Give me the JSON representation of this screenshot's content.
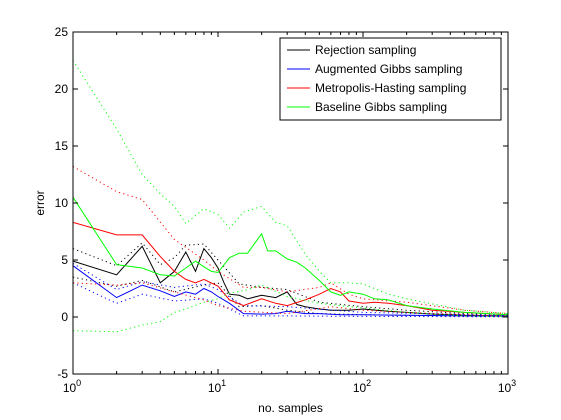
{
  "chart_data": {
    "type": "line",
    "title": "",
    "xlabel": "no. samples",
    "ylabel": "error",
    "xscale": "log",
    "xlim": [
      1,
      1000
    ],
    "ylim": [
      -5,
      25
    ],
    "grid": false,
    "legend_position": "top-right",
    "x_ticks": [
      {
        "value": 1,
        "base": "10",
        "exp": "0"
      },
      {
        "value": 10,
        "base": "10",
        "exp": "1"
      },
      {
        "value": 100,
        "base": "10",
        "exp": "2"
      },
      {
        "value": 1000,
        "base": "10",
        "exp": "3"
      }
    ],
    "y_ticks": [
      "-5",
      "0",
      "5",
      "10",
      "15",
      "20",
      "25"
    ],
    "series": [
      {
        "name": "Rejection sampling",
        "color": "#000000",
        "mean": [
          [
            1,
            4.9
          ],
          [
            2,
            3.7
          ],
          [
            3,
            6.2
          ],
          [
            4,
            3.0
          ],
          [
            5,
            4.0
          ],
          [
            6,
            5.7
          ],
          [
            7,
            4.0
          ],
          [
            8,
            6.0
          ],
          [
            9,
            5.2
          ],
          [
            10,
            4.3
          ],
          [
            11,
            3.0
          ],
          [
            12,
            2.0
          ],
          [
            14,
            1.9
          ],
          [
            16,
            1.6
          ],
          [
            20,
            1.9
          ],
          [
            25,
            1.7
          ],
          [
            30,
            2.2
          ],
          [
            35,
            1.1
          ],
          [
            40,
            0.9
          ],
          [
            50,
            0.7
          ],
          [
            60,
            0.6
          ],
          [
            80,
            0.6
          ],
          [
            100,
            0.7
          ],
          [
            150,
            0.5
          ],
          [
            200,
            0.4
          ],
          [
            300,
            0.25
          ],
          [
            500,
            0.15
          ],
          [
            1000,
            0.1
          ]
        ],
        "upper": [
          [
            1,
            6.0
          ],
          [
            2,
            4.5
          ],
          [
            3,
            6.5
          ],
          [
            4,
            4.6
          ],
          [
            5,
            5.2
          ],
          [
            6,
            6.3
          ],
          [
            8,
            6.4
          ],
          [
            10,
            5.0
          ],
          [
            14,
            2.9
          ],
          [
            20,
            2.6
          ],
          [
            30,
            2.4
          ],
          [
            50,
            1.3
          ],
          [
            100,
            0.9
          ],
          [
            200,
            0.6
          ],
          [
            500,
            0.3
          ],
          [
            1000,
            0.2
          ]
        ],
        "lower": [
          [
            1,
            3.5
          ],
          [
            2,
            2.7
          ],
          [
            3,
            3.2
          ],
          [
            5,
            2.2
          ],
          [
            8,
            2.8
          ],
          [
            10,
            3.0
          ],
          [
            14,
            0.9
          ],
          [
            20,
            1.0
          ],
          [
            30,
            0.6
          ],
          [
            50,
            0.3
          ],
          [
            100,
            0.2
          ],
          [
            1000,
            0.02
          ]
        ]
      },
      {
        "name": "Augmented Gibbs sampling",
        "color": "#0000ff",
        "mean": [
          [
            1,
            4.5
          ],
          [
            2,
            1.7
          ],
          [
            3,
            2.8
          ],
          [
            4,
            2.3
          ],
          [
            5,
            1.8
          ],
          [
            6,
            2.2
          ],
          [
            7,
            2.0
          ],
          [
            8,
            2.5
          ],
          [
            9,
            2.2
          ],
          [
            10,
            1.8
          ],
          [
            12,
            1.2
          ],
          [
            15,
            0.3
          ],
          [
            20,
            0.25
          ],
          [
            25,
            0.3
          ],
          [
            30,
            0.5
          ],
          [
            40,
            0.3
          ],
          [
            50,
            0.3
          ],
          [
            70,
            0.2
          ],
          [
            100,
            0.2
          ],
          [
            200,
            0.15
          ],
          [
            500,
            0.1
          ],
          [
            1000,
            0.08
          ]
        ],
        "upper": [
          [
            1,
            4.7
          ],
          [
            2,
            2.4
          ],
          [
            3,
            3.1
          ],
          [
            5,
            2.6
          ],
          [
            8,
            2.9
          ],
          [
            10,
            2.4
          ],
          [
            15,
            1.0
          ],
          [
            30,
            0.9
          ],
          [
            100,
            0.4
          ],
          [
            1000,
            0.15
          ]
        ],
        "lower": [
          [
            1,
            3.0
          ],
          [
            2,
            1.2
          ],
          [
            3,
            2.0
          ],
          [
            5,
            1.4
          ],
          [
            8,
            1.6
          ],
          [
            10,
            1.2
          ],
          [
            15,
            0.1
          ],
          [
            30,
            0.1
          ],
          [
            100,
            0.05
          ],
          [
            1000,
            0.02
          ]
        ]
      },
      {
        "name": "Metropolis-Hasting sampling",
        "color": "#ff0000",
        "mean": [
          [
            1,
            8.3
          ],
          [
            2,
            7.2
          ],
          [
            3,
            7.2
          ],
          [
            4,
            5.3
          ],
          [
            5,
            4.0
          ],
          [
            6,
            3.3
          ],
          [
            7,
            3.0
          ],
          [
            8,
            3.3
          ],
          [
            10,
            2.7
          ],
          [
            12,
            1.5
          ],
          [
            15,
            1.0
          ],
          [
            20,
            1.6
          ],
          [
            25,
            1.2
          ],
          [
            30,
            1.0
          ],
          [
            40,
            1.5
          ],
          [
            50,
            2.0
          ],
          [
            60,
            2.5
          ],
          [
            70,
            2.2
          ],
          [
            80,
            1.4
          ],
          [
            100,
            1.2
          ],
          [
            120,
            1.3
          ],
          [
            150,
            1.2
          ],
          [
            200,
            1.0
          ],
          [
            300,
            0.6
          ],
          [
            500,
            0.4
          ],
          [
            1000,
            0.2
          ]
        ],
        "upper": [
          [
            1,
            13.2
          ],
          [
            2,
            11.0
          ],
          [
            3,
            10.3
          ],
          [
            5,
            6.8
          ],
          [
            8,
            5.0
          ],
          [
            10,
            4.0
          ],
          [
            15,
            2.6
          ],
          [
            20,
            2.6
          ],
          [
            30,
            2.2
          ],
          [
            50,
            2.6
          ],
          [
            60,
            3.0
          ],
          [
            80,
            2.0
          ],
          [
            100,
            1.6
          ],
          [
            200,
            1.3
          ],
          [
            500,
            0.6
          ],
          [
            1000,
            0.3
          ]
        ],
        "lower": [
          [
            1,
            3.0
          ],
          [
            2,
            2.8
          ],
          [
            3,
            3.0
          ],
          [
            5,
            2.2
          ],
          [
            8,
            1.5
          ],
          [
            10,
            1.0
          ],
          [
            15,
            0.5
          ],
          [
            30,
            0.3
          ],
          [
            60,
            0.9
          ],
          [
            100,
            0.6
          ],
          [
            200,
            0.4
          ],
          [
            1000,
            0.05
          ]
        ]
      },
      {
        "name": "Baseline Gibbs sampling",
        "color": "#00ff00",
        "mean": [
          [
            1,
            10.5
          ],
          [
            2,
            4.6
          ],
          [
            3,
            4.3
          ],
          [
            4,
            3.7
          ],
          [
            5,
            3.6
          ],
          [
            6,
            4.3
          ],
          [
            7,
            4.9
          ],
          [
            8,
            4.4
          ],
          [
            9,
            4.0
          ],
          [
            10,
            3.9
          ],
          [
            12,
            5.2
          ],
          [
            14,
            5.6
          ],
          [
            16,
            5.6
          ],
          [
            18,
            6.5
          ],
          [
            20,
            7.3
          ],
          [
            22,
            5.8
          ],
          [
            25,
            5.8
          ],
          [
            30,
            5.1
          ],
          [
            35,
            4.8
          ],
          [
            40,
            4.3
          ],
          [
            50,
            3.2
          ],
          [
            60,
            2.2
          ],
          [
            70,
            1.9
          ],
          [
            80,
            2.2
          ],
          [
            100,
            2.0
          ],
          [
            120,
            1.6
          ],
          [
            150,
            1.5
          ],
          [
            200,
            1.0
          ],
          [
            300,
            0.7
          ],
          [
            500,
            0.4
          ],
          [
            1000,
            0.2
          ]
        ],
        "upper": [
          [
            1,
            22.5
          ],
          [
            2,
            16.5
          ],
          [
            3,
            12.5
          ],
          [
            4,
            10.8
          ],
          [
            5,
            9.7
          ],
          [
            6,
            8.2
          ],
          [
            8,
            9.5
          ],
          [
            10,
            9.0
          ],
          [
            12,
            7.8
          ],
          [
            15,
            9.2
          ],
          [
            20,
            9.7
          ],
          [
            25,
            8.3
          ],
          [
            30,
            8.0
          ],
          [
            40,
            5.5
          ],
          [
            50,
            4.0
          ],
          [
            60,
            3.0
          ],
          [
            80,
            3.0
          ],
          [
            100,
            2.9
          ],
          [
            150,
            2.0
          ],
          [
            200,
            1.6
          ],
          [
            500,
            0.6
          ],
          [
            1000,
            0.3
          ]
        ],
        "lower": [
          [
            1,
            -1.2
          ],
          [
            2,
            -1.3
          ],
          [
            3,
            -0.7
          ],
          [
            4,
            -0.4
          ],
          [
            5,
            0.4
          ],
          [
            6,
            0.7
          ],
          [
            8,
            1.3
          ],
          [
            10,
            1.6
          ],
          [
            12,
            2.1
          ],
          [
            15,
            2.3
          ],
          [
            20,
            2.8
          ],
          [
            30,
            1.8
          ],
          [
            50,
            1.2
          ],
          [
            80,
            0.9
          ],
          [
            100,
            0.8
          ],
          [
            200,
            0.4
          ],
          [
            500,
            0.1
          ],
          [
            1000,
            0.05
          ]
        ]
      }
    ]
  }
}
